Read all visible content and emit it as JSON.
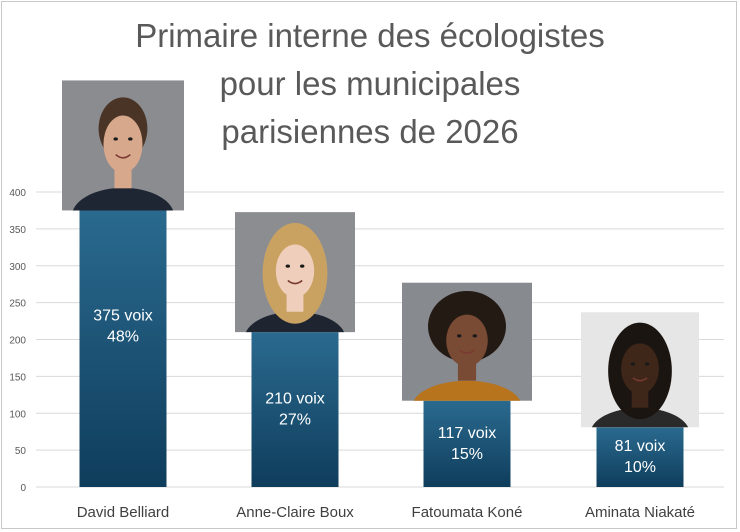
{
  "title_lines": [
    "Primaire interne des écologistes",
    "pour les municipales",
    "parisiennes de 2026"
  ],
  "chart_data": {
    "type": "bar",
    "title": "Primaire interne des écologistes pour les municipales parisiennes de 2026",
    "categories": [
      "David Belliard",
      "Anne-Claire Boux",
      "Fatoumata Koné",
      "Aminata Niakaté"
    ],
    "values": [
      375,
      210,
      117,
      81
    ],
    "data_labels": [
      [
        "375 voix",
        "48%"
      ],
      [
        "210 voix",
        "27%"
      ],
      [
        "117 voix",
        "15%"
      ],
      [
        "81 voix",
        "10%"
      ]
    ],
    "ylim": [
      0,
      400
    ],
    "yticks": [
      0,
      50,
      100,
      150,
      200,
      250,
      300,
      350,
      400
    ],
    "grid": true,
    "legend": "none",
    "photos": [
      {
        "name": "David Belliard",
        "bg": "#8a8c90",
        "hair": "#4a3426",
        "skin": "#d7a88c",
        "shirt": "#1f2633"
      },
      {
        "name": "Anne-Claire Boux",
        "bg": "#8b8d91",
        "hair": "#c9a262",
        "skin": "#efcfbb",
        "shirt": "#1e2430"
      },
      {
        "name": "Fatoumata Koné",
        "bg": "#878a8f",
        "hair": "#241a14",
        "skin": "#7a4b34",
        "shirt": "#b8741d"
      },
      {
        "name": "Aminata Niakaté",
        "bg": "#e6e6e6",
        "hair": "#1b1512",
        "skin": "#3e2619",
        "shirt": "#2a2a2a"
      }
    ]
  },
  "colors": {
    "bar_top": "#2a6a8f",
    "bar_bottom": "#0f3d5c",
    "grid": "#d9d9d9",
    "axis_text": "#595959",
    "label_text": "#ffffff",
    "title_text": "#595959"
  }
}
